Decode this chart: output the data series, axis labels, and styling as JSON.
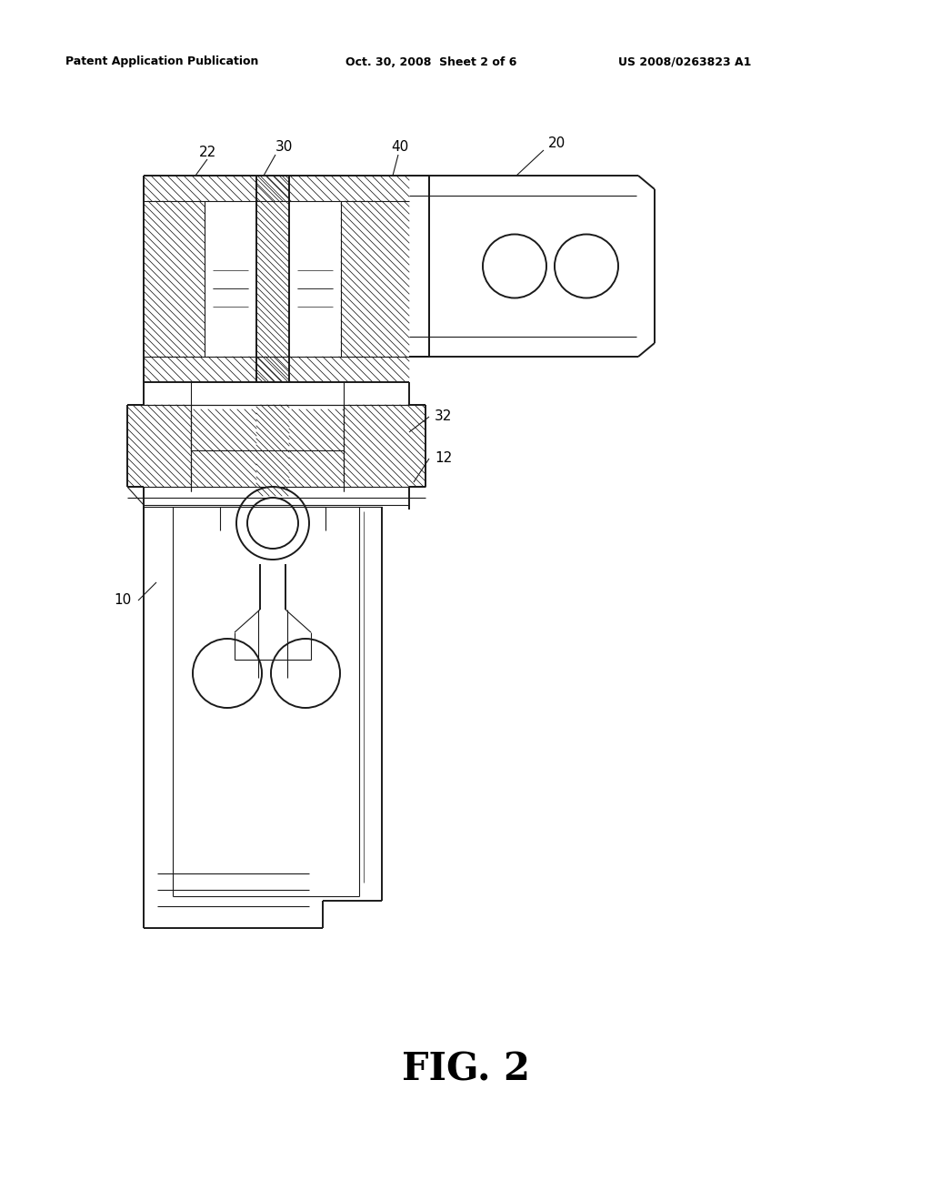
{
  "bg_color": "#ffffff",
  "lc": "#1a1a1a",
  "header_left": "Patent Application Publication",
  "header_mid": "Oct. 30, 2008  Sheet 2 of 6",
  "header_right": "US 2008/0263823 A1",
  "figure_label": "FIG. 2",
  "lw_main": 1.4,
  "lw_thin": 0.8,
  "lw_hatch": 0.55,
  "label_fs": 11
}
